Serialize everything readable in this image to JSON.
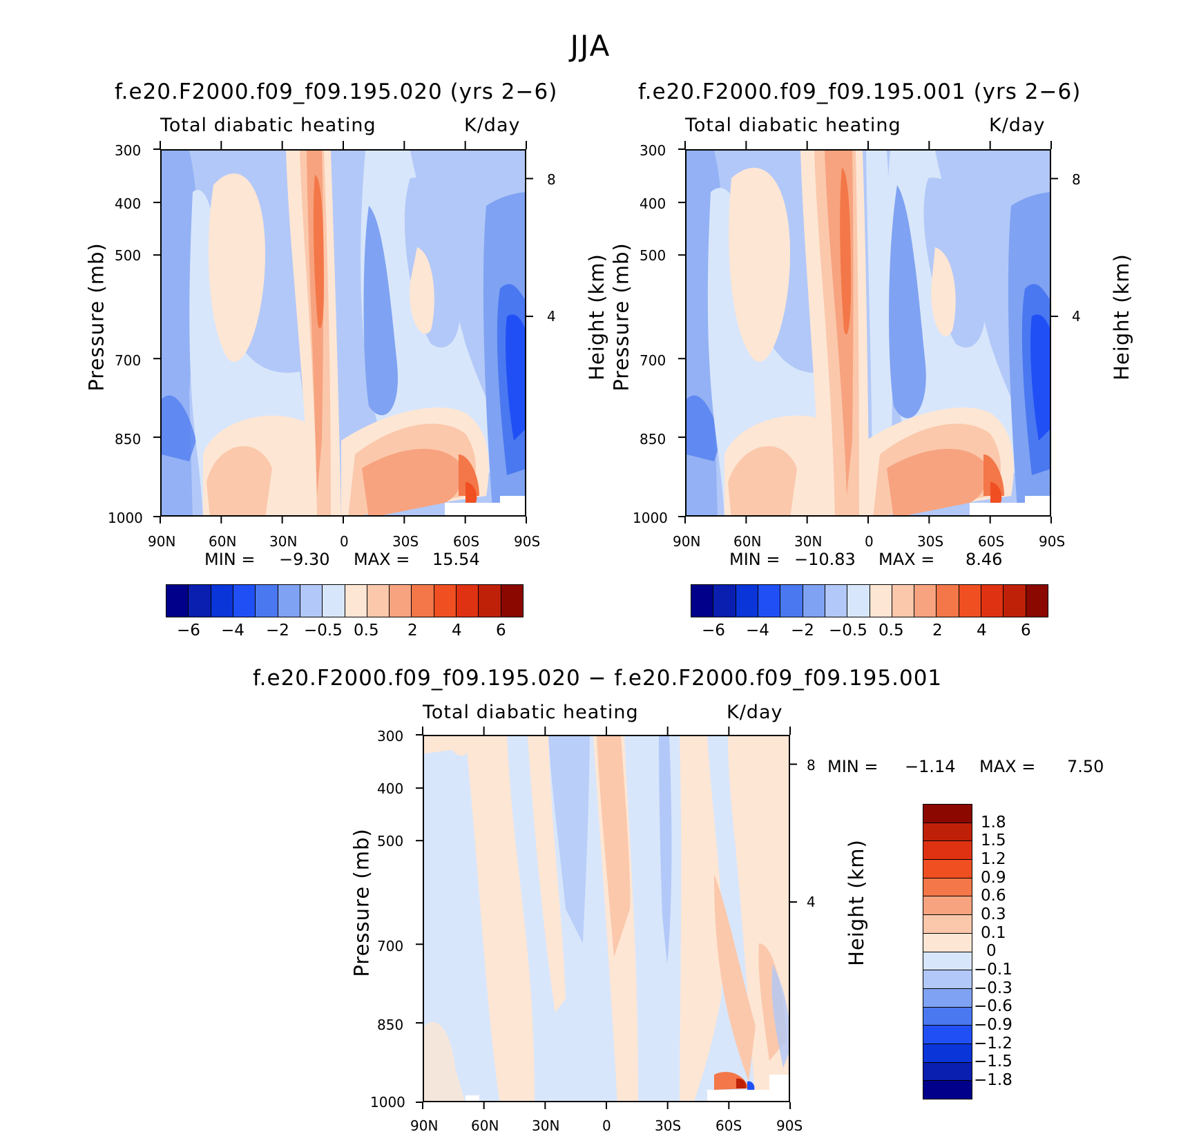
{
  "suptitle": "JJA",
  "field_title": "Total diabatic heating",
  "units": "K/day",
  "y_axis_label": "Pressure (mb)",
  "y2_axis_label": "Height (km)",
  "colors": {
    "abs_scale": [
      "#00008a",
      "#0a1fb0",
      "#0a35d8",
      "#2050f5",
      "#4a78f0",
      "#7fa2f2",
      "#b2c8f8",
      "#d8e6fb",
      "#fde6d4",
      "#fbc8ac",
      "#f7a37f",
      "#f37748",
      "#f04f22",
      "#df3212",
      "#bf2108",
      "#8a0800"
    ],
    "diff_scale": [
      "#00008a",
      "#0a1fb0",
      "#0a35d8",
      "#2050f5",
      "#4a78f0",
      "#7fa2f2",
      "#b2c8f8",
      "#d8e6fb",
      "#fde6d4",
      "#fbc8ac",
      "#f7a37f",
      "#f37748",
      "#f04f22",
      "#df3212",
      "#bf2108",
      "#8a0800"
    ]
  },
  "abs_colorbar_labels": [
    "−6",
    "−4",
    "−2",
    "−0.5",
    "0.5",
    "2",
    "4",
    "6"
  ],
  "diff_colorbar_labels": [
    "1.8",
    "1.5",
    "1.2",
    "0.9",
    "0.6",
    "0.3",
    "0.1",
    "0",
    "−0.1",
    "−0.3",
    "−0.6",
    "−0.9",
    "−1.2",
    "−1.5",
    "−1.8"
  ],
  "pressure_ticks": [
    "300",
    "400",
    "500",
    "700",
    "850",
    "1000"
  ],
  "height_ticks": [
    "8",
    "4"
  ],
  "lat_ticks": [
    "90N",
    "60N",
    "30N",
    "0",
    "30S",
    "60S",
    "90S"
  ],
  "panels": [
    {
      "title": "f.e20.F2000.f09_f09.195.020 (yrs 2−6)",
      "min_label": "MIN =",
      "min_value": "−9.30",
      "max_label": "MAX =",
      "max_value": "15.54"
    },
    {
      "title": "f.e20.F2000.f09_f09.195.001 (yrs 2−6)",
      "min_label": "MIN =",
      "min_value": "−10.83",
      "max_label": "MAX =",
      "max_value": "8.46"
    },
    {
      "title": "f.e20.F2000.f09_f09.195.020 − f.e20.F2000.f09_f09.195.001",
      "min_label": "MIN =",
      "min_value": "−1.14",
      "max_label": "MAX =",
      "max_value": "7.50"
    }
  ],
  "chart_data": [
    {
      "type": "heatmap",
      "title": "f.e20.F2000.f09_f09.195.020 (yrs 2−6)",
      "subtitle": "Total diabatic heating",
      "units": "K/day",
      "x": [
        "90N",
        "60N",
        "30N",
        "0",
        "30S",
        "60S",
        "90S"
      ],
      "y": [
        300,
        400,
        500,
        700,
        850,
        1000
      ],
      "ylabel": "Pressure (mb)",
      "y2label": "Height (km)",
      "min": -9.3,
      "max": 15.54,
      "contour_levels": [
        -6,
        -5,
        -4,
        -3,
        -2,
        -1,
        -0.5,
        0,
        0.5,
        1,
        2,
        3,
        4,
        5,
        6
      ]
    },
    {
      "type": "heatmap",
      "title": "f.e20.F2000.f09_f09.195.001 (yrs 2−6)",
      "subtitle": "Total diabatic heating",
      "units": "K/day",
      "x": [
        "90N",
        "60N",
        "30N",
        "0",
        "30S",
        "60S",
        "90S"
      ],
      "y": [
        300,
        400,
        500,
        700,
        850,
        1000
      ],
      "ylabel": "Pressure (mb)",
      "y2label": "Height (km)",
      "min": -10.83,
      "max": 8.46,
      "contour_levels": [
        -6,
        -5,
        -4,
        -3,
        -2,
        -1,
        -0.5,
        0,
        0.5,
        1,
        2,
        3,
        4,
        5,
        6
      ]
    },
    {
      "type": "heatmap",
      "title": "f.e20.F2000.f09_f09.195.020 − f.e20.F2000.f09_f09.195.001",
      "subtitle": "Total diabatic heating",
      "units": "K/day",
      "x": [
        "90N",
        "60N",
        "30N",
        "0",
        "30S",
        "60S",
        "90S"
      ],
      "y": [
        300,
        400,
        500,
        700,
        850,
        1000
      ],
      "ylabel": "Pressure (mb)",
      "y2label": "Height (km)",
      "min": -1.14,
      "max": 7.5,
      "contour_levels": [
        -1.8,
        -1.5,
        -1.2,
        -0.9,
        -0.6,
        -0.3,
        -0.1,
        0,
        0.1,
        0.3,
        0.6,
        0.9,
        1.2,
        1.5,
        1.8
      ]
    }
  ]
}
